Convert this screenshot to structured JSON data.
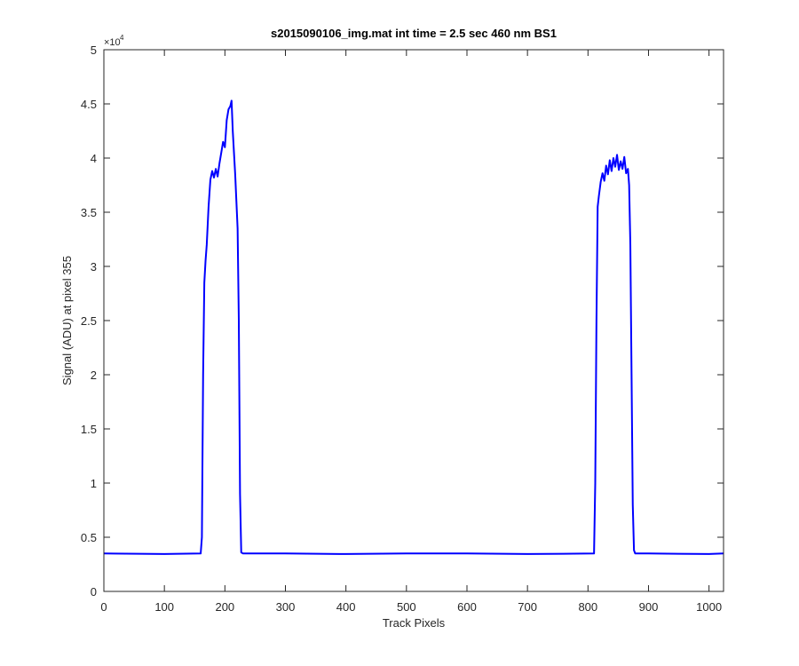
{
  "chart_data": {
    "type": "line",
    "title": "s2015090106_img.mat int time = 2.5 sec  460 nm BS1",
    "x_label": "Track Pixels",
    "y_label": "Signal (ADU) at pixel 355",
    "y_multiplier": {
      "base": "×10",
      "exponent": "4"
    },
    "xlim": [
      0,
      1024
    ],
    "ylim": [
      0,
      50000
    ],
    "xticks": [
      0,
      100,
      200,
      300,
      400,
      500,
      600,
      700,
      800,
      900,
      1000
    ],
    "yticks": [
      0,
      {
        "value": 5000,
        "label": "0.5"
      },
      {
        "value": 10000,
        "label": "1"
      },
      {
        "value": 15000,
        "label": "1.5"
      },
      {
        "value": 20000,
        "label": "2"
      },
      {
        "value": 25000,
        "label": "2.5"
      },
      {
        "value": 30000,
        "label": "3"
      },
      {
        "value": 35000,
        "label": "3.5"
      },
      {
        "value": 40000,
        "label": "4"
      },
      {
        "value": 45000,
        "label": "4.5"
      },
      {
        "value": 50000,
        "label": "5"
      }
    ],
    "grid": false,
    "x": [
      0,
      100,
      160,
      162,
      164,
      166,
      168,
      170,
      173,
      176,
      179,
      182,
      185,
      188,
      191,
      194,
      197,
      200,
      203,
      206,
      209,
      211,
      213,
      215,
      217,
      219,
      221,
      223,
      225,
      227,
      230,
      300,
      400,
      500,
      600,
      700,
      810,
      812,
      814,
      816,
      818,
      821,
      824,
      827,
      830,
      833,
      836,
      839,
      842,
      845,
      848,
      851,
      854,
      857,
      860,
      863,
      866,
      868,
      870,
      872,
      874,
      876,
      878,
      900,
      1000,
      1024
    ],
    "series": [
      {
        "color": "#0000ff",
        "values": [
          3500,
          3450,
          3500,
          5000,
          20000,
          28500,
          30500,
          32000,
          35500,
          38000,
          38800,
          38200,
          39000,
          38300,
          39500,
          40500,
          41500,
          41000,
          43500,
          44500,
          44800,
          45300,
          42500,
          40500,
          38500,
          36000,
          33500,
          25000,
          9000,
          3600,
          3500,
          3500,
          3450,
          3500,
          3500,
          3450,
          3500,
          10000,
          25000,
          35500,
          36500,
          37800,
          38600,
          37900,
          39300,
          38500,
          39800,
          38800,
          40000,
          39200,
          40300,
          38900,
          39700,
          39000,
          40100,
          38600,
          39000,
          37500,
          32000,
          20000,
          8000,
          3800,
          3500,
          3500,
          3450,
          3500
        ]
      }
    ]
  }
}
